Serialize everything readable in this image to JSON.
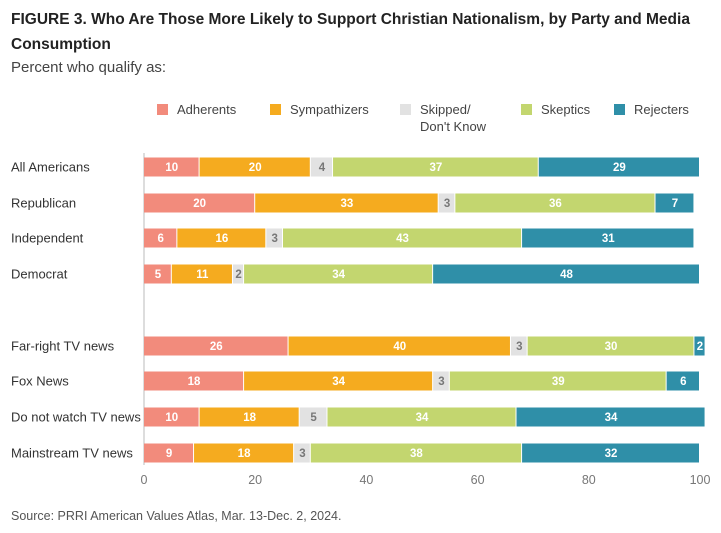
{
  "header": {
    "title": "FIGURE 3.  Who Are Those More Likely to Support Christian Nationalism, by Party and Media Consumption",
    "subtitle": "Percent who qualify as:"
  },
  "footer": {
    "source": "Source: PRRI American Values Atlas, Mar. 13-Dec. 2, 2024."
  },
  "chart_data": {
    "type": "bar",
    "orientation": "horizontal",
    "stacked": true,
    "categories": [
      "All Americans",
      "Republican",
      "Independent",
      "Democrat",
      "Far-right TV news",
      "Fox News",
      "Do not watch TV news",
      "Mainstream TV news"
    ],
    "series": [
      {
        "name": "Adherents",
        "color": "#f28b7c",
        "label_color": "#ffffff",
        "values": [
          10,
          20,
          6,
          5,
          26,
          18,
          10,
          9
        ]
      },
      {
        "name": "Sympathizers",
        "color": "#f5ab1f",
        "label_color": "#ffffff",
        "values": [
          20,
          33,
          16,
          11,
          40,
          34,
          18,
          18
        ]
      },
      {
        "name": "Skipped/ Don't Know",
        "color": "#e2e2e2",
        "label_color": "#777777",
        "values": [
          4,
          3,
          3,
          2,
          3,
          3,
          5,
          3
        ]
      },
      {
        "name": "Skeptics",
        "color": "#c3d66f",
        "label_color": "#ffffff",
        "values": [
          37,
          36,
          43,
          34,
          30,
          39,
          34,
          38
        ]
      },
      {
        "name": "Rejecters",
        "color": "#2f8fa8",
        "label_color": "#ffffff",
        "values": [
          29,
          7,
          31,
          48,
          2,
          6,
          34,
          32
        ]
      }
    ],
    "legend_labels": [
      "Adherents",
      "Sympathizers",
      "Skipped/",
      "Don't Know",
      "Skeptics",
      "Rejecters"
    ],
    "xlim": [
      0,
      100
    ],
    "xticks": [
      0,
      20,
      40,
      60,
      80,
      100
    ],
    "legend_position": "top",
    "grid": false
  }
}
